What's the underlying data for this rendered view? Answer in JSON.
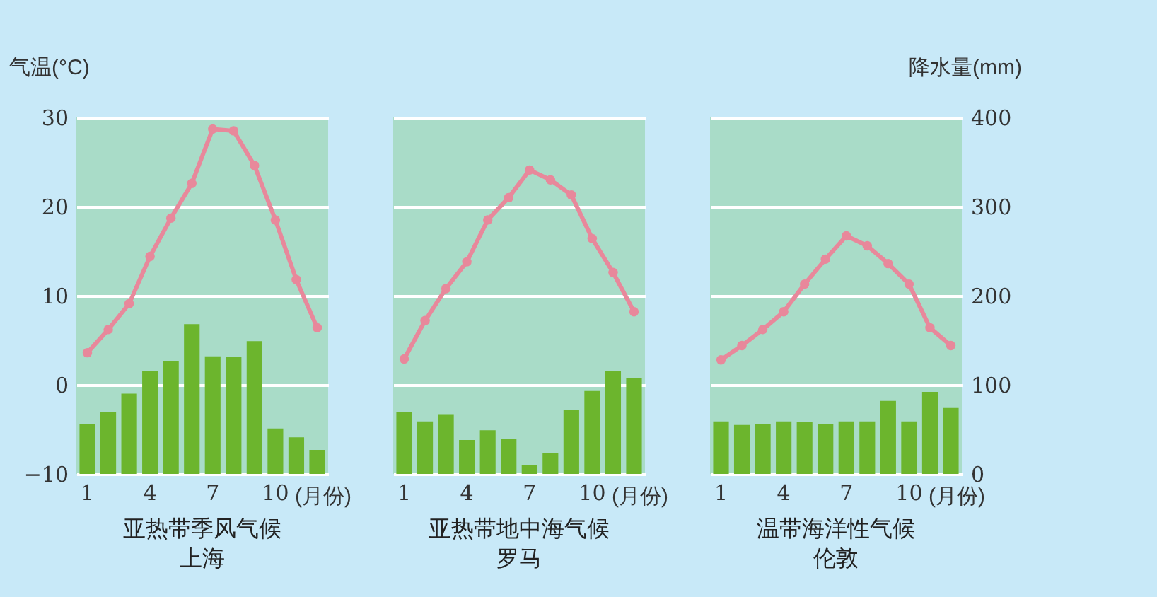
{
  "chart_data": [
    {
      "type": "bar",
      "title": "亚热带季风气候",
      "subtitle": "上海",
      "xlabel": "(月份)",
      "ylabel": "气温(°C)",
      "categories": [
        "1",
        null,
        null,
        "4",
        null,
        null,
        "7",
        null,
        null,
        "10",
        null,
        null
      ],
      "ylim": [
        -10,
        30
      ],
      "yticks": [
        -10,
        0,
        10,
        20,
        30
      ],
      "y2lim": [
        0,
        400
      ],
      "grid": "y",
      "marker": "circle",
      "series": [
        {
          "type": "bar",
          "axis": "y2",
          "color": "#6cb52d",
          "values": [
            56,
            69,
            90,
            115,
            127,
            168,
            132,
            131,
            149,
            51,
            41,
            27
          ]
        },
        {
          "type": "line",
          "axis": "y",
          "color": "#e8889b",
          "values": [
            3.6,
            6.2,
            9.1,
            14.4,
            18.7,
            22.6,
            28.7,
            28.5,
            24.6,
            18.5,
            11.8,
            6.4
          ]
        }
      ]
    },
    {
      "type": "bar",
      "title": "亚热带地中海气候",
      "subtitle": "罗马",
      "xlabel": "(月份)",
      "categories": [
        "1",
        null,
        null,
        "4",
        null,
        null,
        "7",
        null,
        null,
        "10",
        null,
        null
      ],
      "ylim": [
        -10,
        30
      ],
      "yticks": [
        -10,
        0,
        10,
        20,
        30
      ],
      "y2lim": [
        0,
        400
      ],
      "y2ticks": [
        0,
        100,
        200,
        300,
        400
      ],
      "grid": "y",
      "tick_labels": "x",
      "marker": "circle",
      "series": [
        {
          "type": "bar",
          "axis": "y2",
          "color": "#6cb52d",
          "values": [
            69,
            59,
            67,
            38,
            49,
            39,
            10,
            23,
            72,
            93,
            115,
            108
          ]
        },
        {
          "type": "line",
          "axis": "y",
          "color": "#e8889b",
          "values": [
            2.9,
            7.2,
            10.8,
            13.8,
            18.5,
            21,
            24.1,
            23,
            21.3,
            16.4,
            12.6,
            8.2
          ]
        }
      ]
    },
    {
      "type": "bar",
      "title": "温带海洋性气候",
      "subtitle": "伦敦",
      "xlabel": "(月份)",
      "y2label": "降水量(mm)",
      "categories": [
        "1",
        null,
        null,
        "4",
        null,
        null,
        "7",
        null,
        null,
        "10",
        null,
        null
      ],
      "ylim": [
        -10,
        30
      ],
      "y2lim": [
        0,
        400
      ],
      "y2ticks": [
        0,
        100,
        200,
        300,
        400
      ],
      "grid": "y",
      "marker": "circle",
      "series": [
        {
          "type": "bar",
          "axis": "y2",
          "color": "#6cb52d",
          "values": [
            59,
            55,
            56,
            59,
            58,
            56,
            59,
            59,
            82,
            59,
            92,
            74
          ]
        },
        {
          "type": "line",
          "axis": "y",
          "color": "#e8889b",
          "values": [
            2.8,
            4.4,
            6.2,
            8.2,
            11.3,
            14.1,
            16.7,
            15.6,
            13.6,
            11.3,
            6.4,
            4.4
          ]
        }
      ]
    }
  ]
}
